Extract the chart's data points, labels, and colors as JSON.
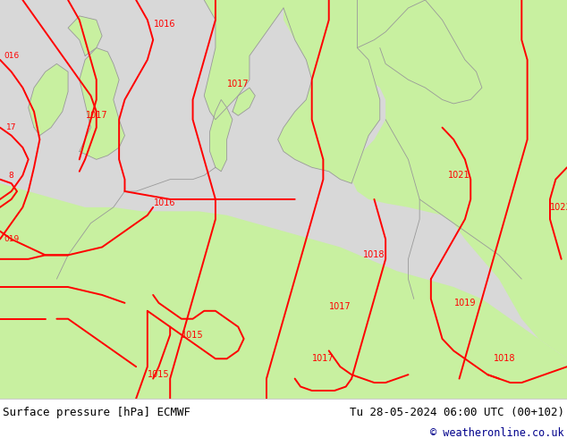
{
  "title_left": "Surface pressure [hPa] ECMWF",
  "title_right": "Tu 28-05-2024 06:00 UTC (00+102)",
  "copyright": "© weatheronline.co.uk",
  "bg_color_land": "#c8f0a0",
  "bg_color_sea": "#d8d8d8",
  "bg_color_bottom": "#ffffff",
  "contour_color": "#ff0000",
  "coast_color": "#999999",
  "text_color": "#00008b",
  "font_size_bottom": 9,
  "font_size_label": 7
}
